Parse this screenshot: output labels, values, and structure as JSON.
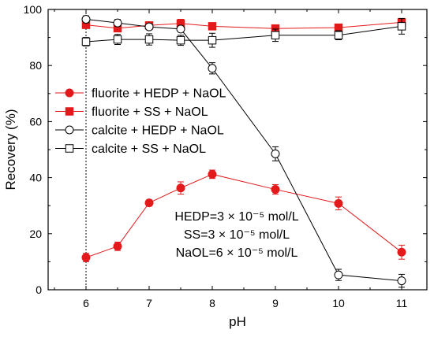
{
  "chart_data": {
    "type": "line",
    "title": "",
    "xlabel": "pH",
    "ylabel": "Recovery (%)",
    "xlim": [
      5.4,
      11.4
    ],
    "ylim": [
      0,
      100
    ],
    "xticks": [
      6,
      7,
      8,
      9,
      10,
      11
    ],
    "yticks": [
      0,
      20,
      40,
      60,
      80,
      100
    ],
    "grid": false,
    "legend_position": "upper-left",
    "reference_line": {
      "x": 6,
      "style": "dotted"
    },
    "colors": {
      "red": "#e31a1c",
      "black": "#000000"
    },
    "series": [
      {
        "name": "fluorite + HEDP + NaOL",
        "marker": "filled-circle",
        "color": "#e31a1c",
        "x": [
          6,
          6.5,
          7,
          7.5,
          8,
          9,
          10,
          11
        ],
        "y": [
          11.5,
          15.5,
          31.0,
          36.3,
          41.2,
          35.8,
          30.8,
          13.4
        ],
        "err": [
          1.5,
          1.5,
          1.0,
          2.2,
          1.5,
          1.7,
          2.3,
          2.5
        ]
      },
      {
        "name": "fluorite + SS + NaOL",
        "marker": "filled-square",
        "color": "#e31a1c",
        "x": [
          6,
          6.5,
          7,
          7.5,
          8,
          9,
          10,
          11
        ],
        "y": [
          94.5,
          93.3,
          94.3,
          95.0,
          94.0,
          93.2,
          93.5,
          95.4
        ],
        "err": [
          1.2,
          1.0,
          0.8,
          1.5,
          0.8,
          1.0,
          1.0,
          1.0
        ]
      },
      {
        "name": "calcite + HEDP + NaOL",
        "marker": "open-circle",
        "color": "#000000",
        "x": [
          6,
          6.5,
          7,
          7.5,
          8,
          9,
          10,
          11
        ],
        "y": [
          96.5,
          95.2,
          93.8,
          93.0,
          79.0,
          48.5,
          5.3,
          3.2
        ],
        "err": [
          1.2,
          1.2,
          1.0,
          1.0,
          2.0,
          2.5,
          2.0,
          2.3
        ]
      },
      {
        "name": "calcite + SS + NaOL",
        "marker": "open-square",
        "color": "#000000",
        "x": [
          6,
          6.5,
          7,
          7.5,
          8,
          9,
          10,
          11
        ],
        "y": [
          88.5,
          89.3,
          89.3,
          89.0,
          89.0,
          90.8,
          90.8,
          94.0
        ],
        "err": [
          1.5,
          1.8,
          2.0,
          1.8,
          2.5,
          2.2,
          1.6,
          2.8
        ]
      }
    ],
    "annotations": [
      "HEDP=3 × 10⁻⁵ mol/L",
      "SS=3 × 10⁻⁵ mol/L",
      "NaOL=6 × 10⁻⁵ mol/L"
    ]
  }
}
